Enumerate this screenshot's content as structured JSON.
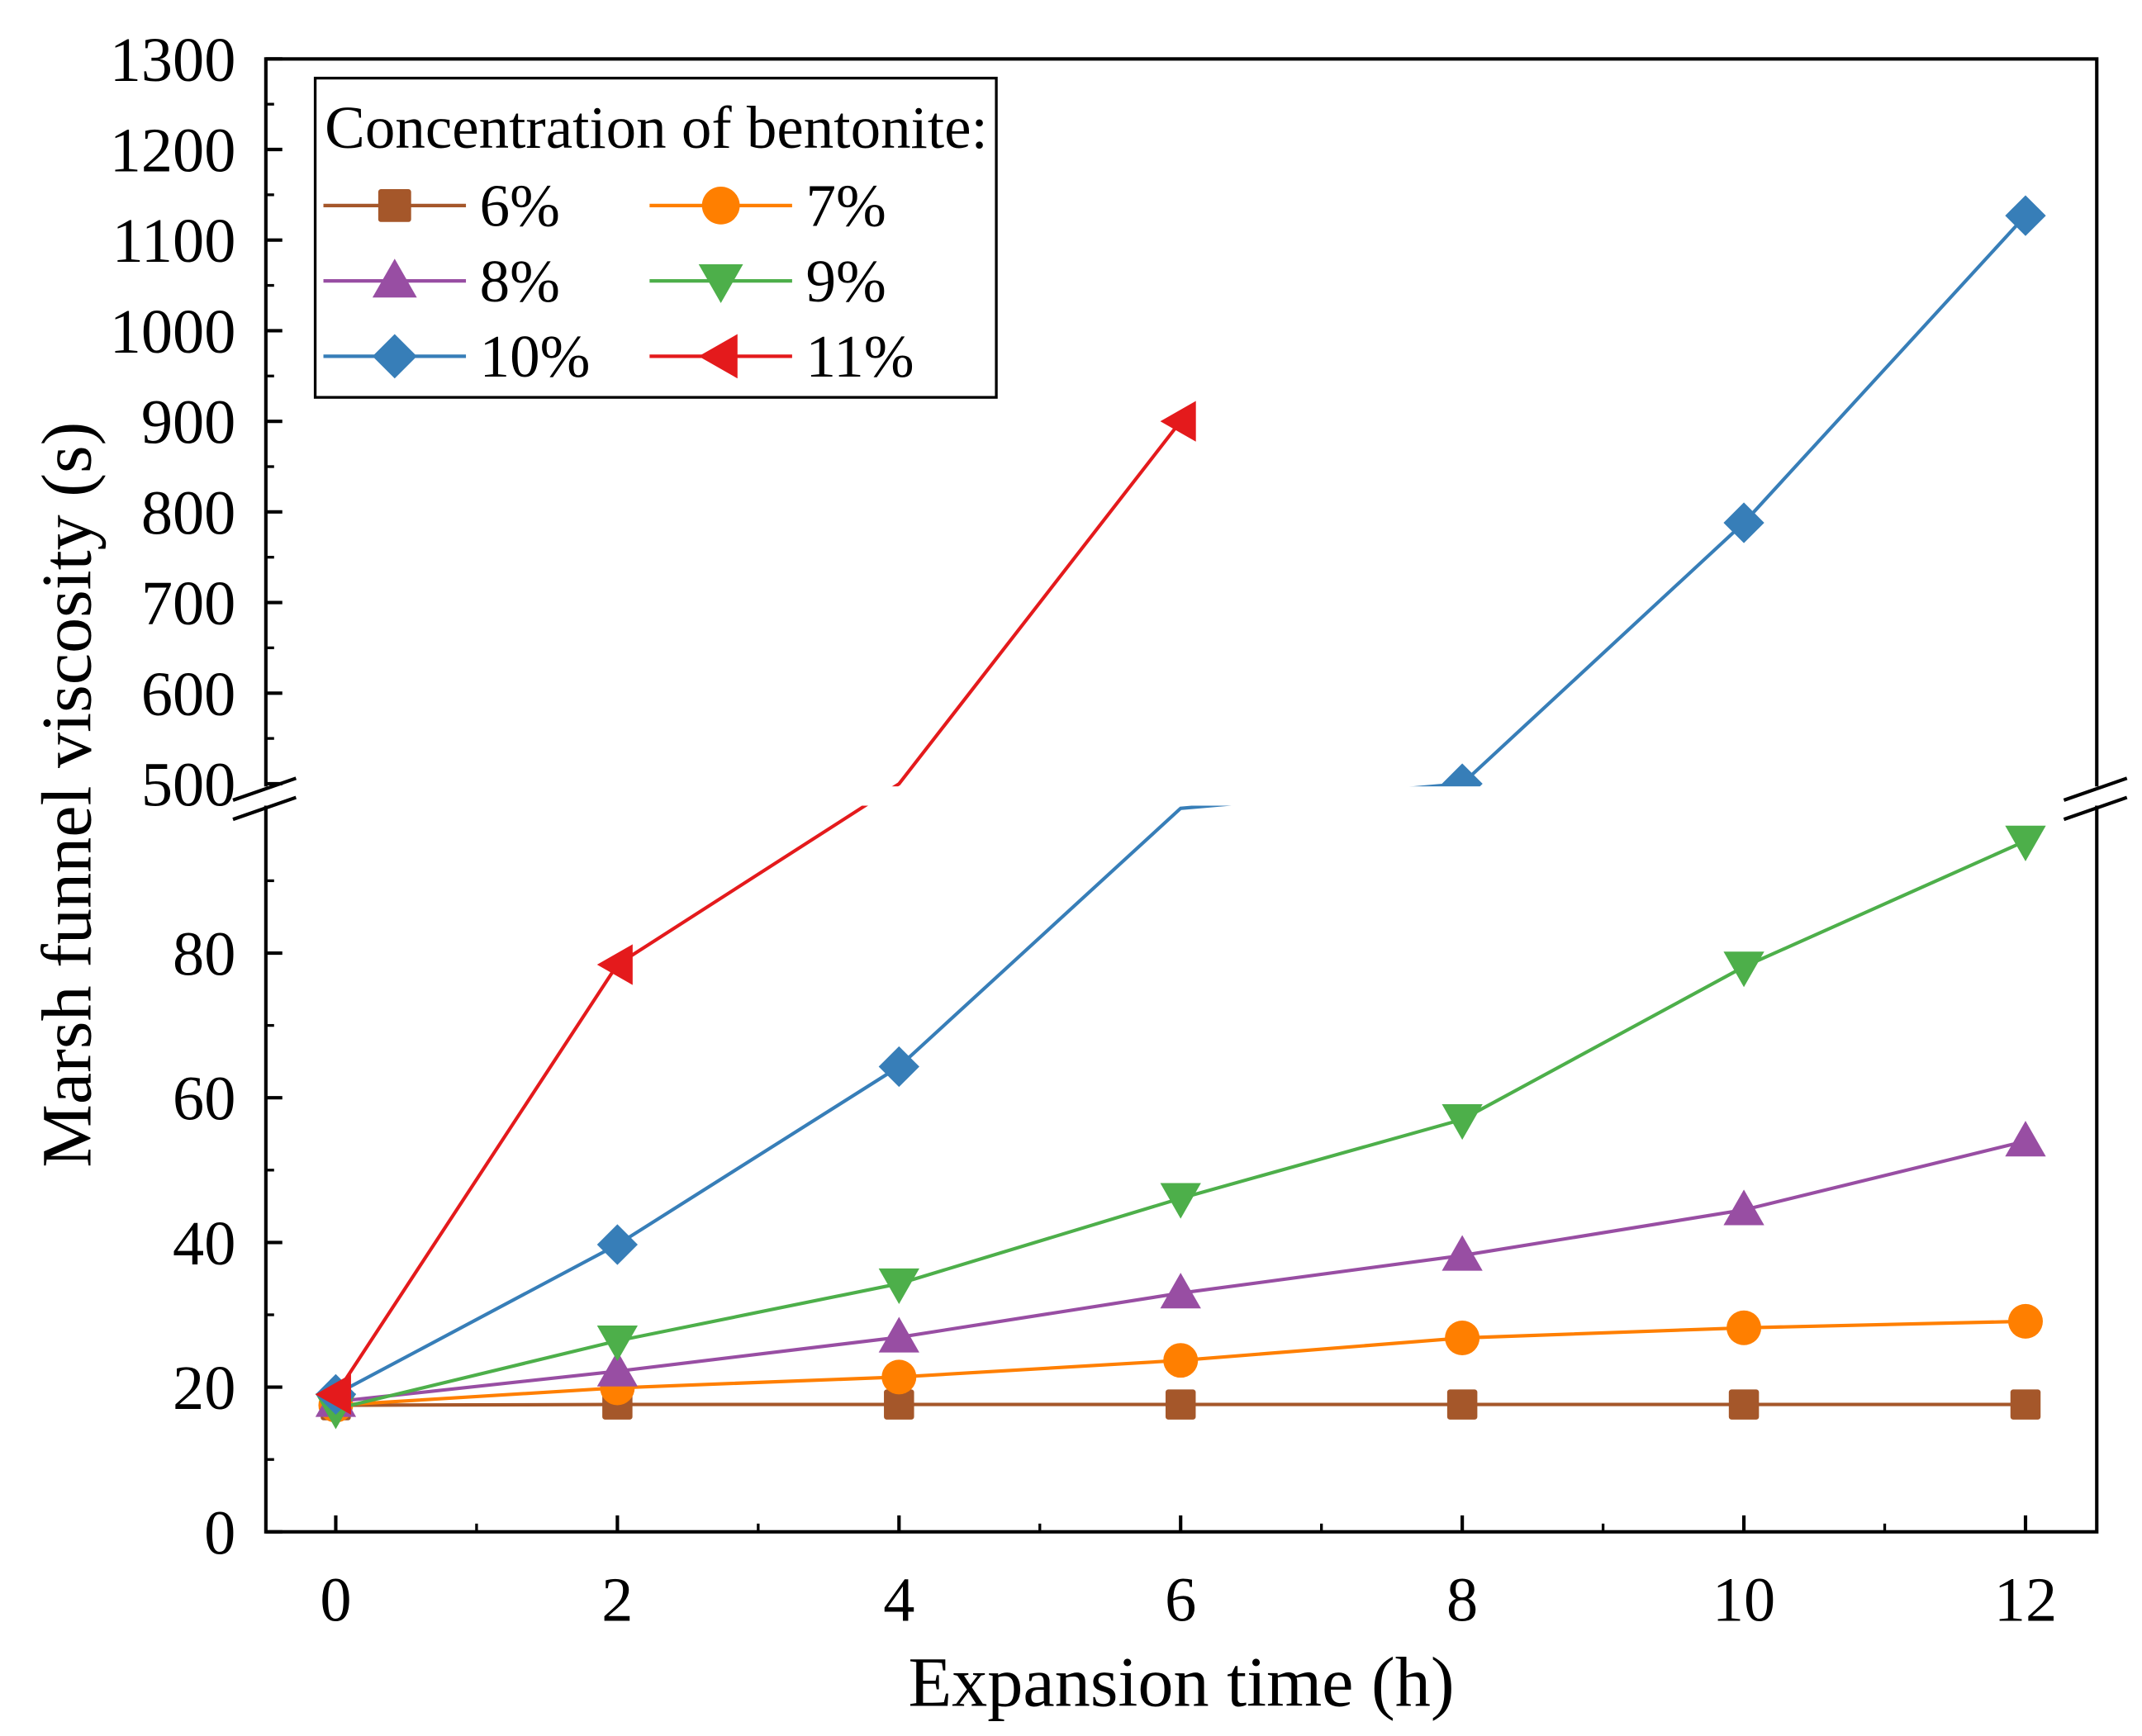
{
  "chart_data": {
    "type": "line",
    "title": "",
    "xlabel": "Expansion time (h)",
    "ylabel": "Marsh funnel viscosity (s)",
    "x": [
      0,
      2,
      4,
      6,
      8,
      10,
      12
    ],
    "xlim": [
      -0.5,
      12.5
    ],
    "xticks": [
      "0",
      "2",
      "4",
      "6",
      "8",
      "10",
      "12"
    ],
    "ylim": [
      0,
      1300
    ],
    "y_break": [
      100,
      500
    ],
    "yticks_lower": [
      "0",
      "20",
      "40",
      "60",
      "80"
    ],
    "yticks_upper": [
      "500",
      "600",
      "700",
      "800",
      "900",
      "1000",
      "1100",
      "1200",
      "1300"
    ],
    "grid": false,
    "legend": {
      "title": "Concentration of bentonite:",
      "placement": "top-left"
    },
    "series": [
      {
        "name": "6%",
        "marker": "square",
        "color": "#A5572A",
        "values": [
          17.5,
          17.6,
          17.6,
          17.6,
          17.6,
          17.6,
          17.6
        ]
      },
      {
        "name": "7%",
        "marker": "circle",
        "color": "#FF7F00",
        "values": [
          17.5,
          19.9,
          21.4,
          23.7,
          26.8,
          28.2,
          29.1
        ]
      },
      {
        "name": "8%",
        "marker": "triangle-up",
        "color": "#984EA3",
        "values": [
          18,
          22.2,
          26.9,
          33,
          38.2,
          44.5,
          54
        ]
      },
      {
        "name": "9%",
        "marker": "triangle-down",
        "color": "#4DAF4A",
        "values": [
          17,
          26.4,
          34.3,
          46.1,
          57,
          78.1,
          95.5
        ]
      },
      {
        "name": "10%",
        "marker": "diamond",
        "color": "#377EB8",
        "values": [
          19,
          39.7,
          64.3,
          101,
          500,
          788,
          1127
        ]
      },
      {
        "name": "11%",
        "marker": "triangle-left",
        "color": "#E41A1C",
        "values": [
          19,
          78.4,
          498,
          900,
          null,
          null,
          null
        ]
      }
    ]
  }
}
